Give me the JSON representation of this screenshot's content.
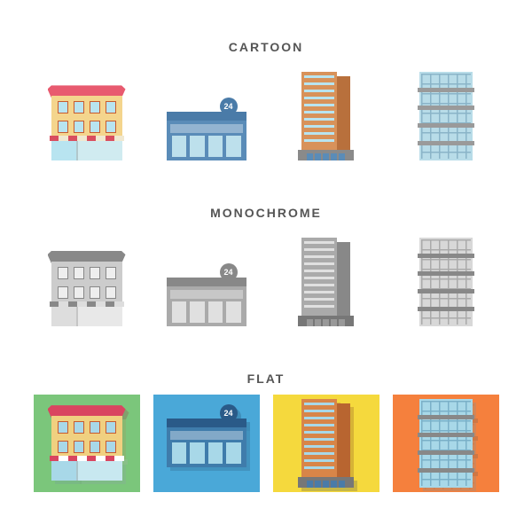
{
  "sections": {
    "cartoon": {
      "title": "CARTOON"
    },
    "monochrome": {
      "title": "MONOCHROME"
    },
    "flat": {
      "title": "FLAT"
    }
  },
  "store_badge": "24",
  "palettes": {
    "cartoon": {
      "house": {
        "roof": "#e85a6f",
        "body": "#f4d58d",
        "window_border": "#c85b2f",
        "window": "#b8e4f0",
        "awning_a": "#d94e5f",
        "awning_b": "#f0e8d0",
        "shop_left": "#b8e4f0",
        "shop_right": "#d0ebf0"
      },
      "store": {
        "sign_bg": "#4a7ba8",
        "sign_text": "#fff",
        "strip": "#4a7ba8",
        "body": "#5a8cb8",
        "window": "#bde0ec"
      },
      "sky": {
        "main": "#d8925a",
        "side": "#b8703c",
        "stripe": "#b8e4f0",
        "base": "#8a8a8a",
        "door": "#5a8cb8"
      },
      "tower": {
        "body": "#b8dce8",
        "line": "#8ab4c8",
        "band": "#9a9a9a"
      }
    },
    "mono": {
      "house": {
        "roof": "#888",
        "body": "#ccc",
        "window_border": "#888",
        "window": "#eee",
        "awning_a": "#888",
        "awning_b": "#ddd",
        "shop_left": "#ddd",
        "shop_right": "#e8e8e8"
      },
      "store": {
        "sign_bg": "#888",
        "sign_text": "#fff",
        "strip": "#888",
        "body": "#aaa",
        "window": "#e0e0e0"
      },
      "sky": {
        "main": "#aaa",
        "side": "#888",
        "stripe": "#e0e0e0",
        "base": "#777",
        "door": "#999"
      },
      "tower": {
        "body": "#d8d8d8",
        "line": "#aaa",
        "band": "#888"
      }
    },
    "flat": {
      "tiles": [
        "#7bc67b",
        "#4aa8d8",
        "#f5d93d",
        "#f5803d"
      ],
      "house": {
        "roof": "#d94560",
        "body": "#f0d080",
        "window_border": "#c85b2f",
        "window": "#a8d8e8",
        "awning_a": "#d94560",
        "awning_b": "#fff",
        "shop_left": "#a8d8e8",
        "shop_right": "#c8e8f0"
      },
      "store": {
        "sign_bg": "#2a5a88",
        "sign_text": "#fff",
        "strip": "#2a5a88",
        "body": "#3f7cab",
        "window": "#a8d8e8"
      },
      "sky": {
        "main": "#d88548",
        "side": "#b86530",
        "stripe": "#a8d8e8",
        "base": "#777",
        "door": "#4a7ba8"
      },
      "tower": {
        "body": "#a8d8e8",
        "line": "#7ab0c8",
        "band": "#888"
      }
    }
  }
}
